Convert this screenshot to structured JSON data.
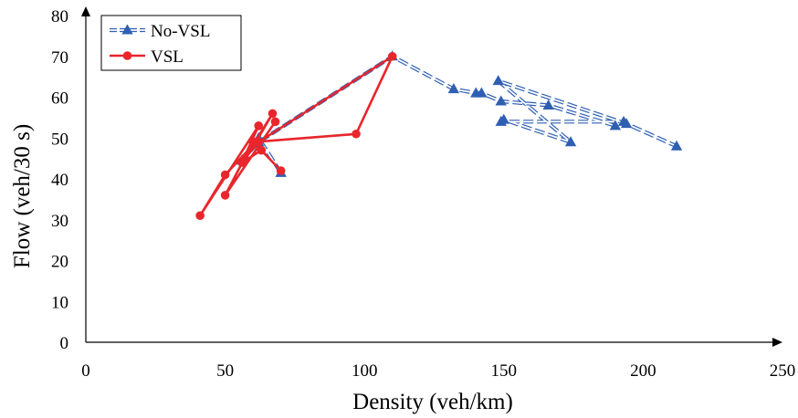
{
  "chart_data": {
    "type": "line",
    "title": "",
    "xlabel": "Density (veh/km)",
    "ylabel": "Flow (veh/30 s)",
    "xlim": [
      0,
      250
    ],
    "ylim": [
      0,
      80
    ],
    "x_ticks": [
      0,
      50,
      100,
      150,
      200,
      250
    ],
    "y_ticks": [
      0,
      10,
      20,
      30,
      40,
      50,
      60,
      70,
      80
    ],
    "grid": false,
    "legend_position": "top-left",
    "series": [
      {
        "name": "No-VSL",
        "color": "#2F5FB3",
        "marker": "triangle",
        "line_style": "dashed-double",
        "points": [
          [
            70,
            41.5
          ],
          [
            62,
            50
          ],
          [
            56,
            44.5
          ],
          [
            62,
            49
          ],
          [
            110,
            70
          ],
          [
            132,
            62
          ],
          [
            140,
            61
          ],
          [
            142,
            61
          ],
          [
            149,
            59
          ],
          [
            166,
            58
          ],
          [
            190,
            53
          ],
          [
            193,
            54
          ],
          [
            149,
            54
          ],
          [
            150,
            54.5
          ],
          [
            174,
            49
          ],
          [
            148,
            64
          ],
          [
            194,
            53.5
          ],
          [
            212,
            48
          ]
        ]
      },
      {
        "name": "VSL",
        "color": "#E8262B",
        "marker": "circle",
        "line_style": "solid",
        "points": [
          [
            70,
            42
          ],
          [
            63,
            47
          ],
          [
            56,
            44
          ],
          [
            62,
            53
          ],
          [
            41,
            31
          ],
          [
            50,
            41
          ],
          [
            61,
            49
          ],
          [
            67,
            56
          ],
          [
            57,
            45
          ],
          [
            62,
            49
          ],
          [
            110,
            70
          ],
          [
            97,
            51
          ],
          [
            60,
            49
          ],
          [
            50,
            36
          ],
          [
            68,
            54
          ]
        ]
      }
    ]
  }
}
